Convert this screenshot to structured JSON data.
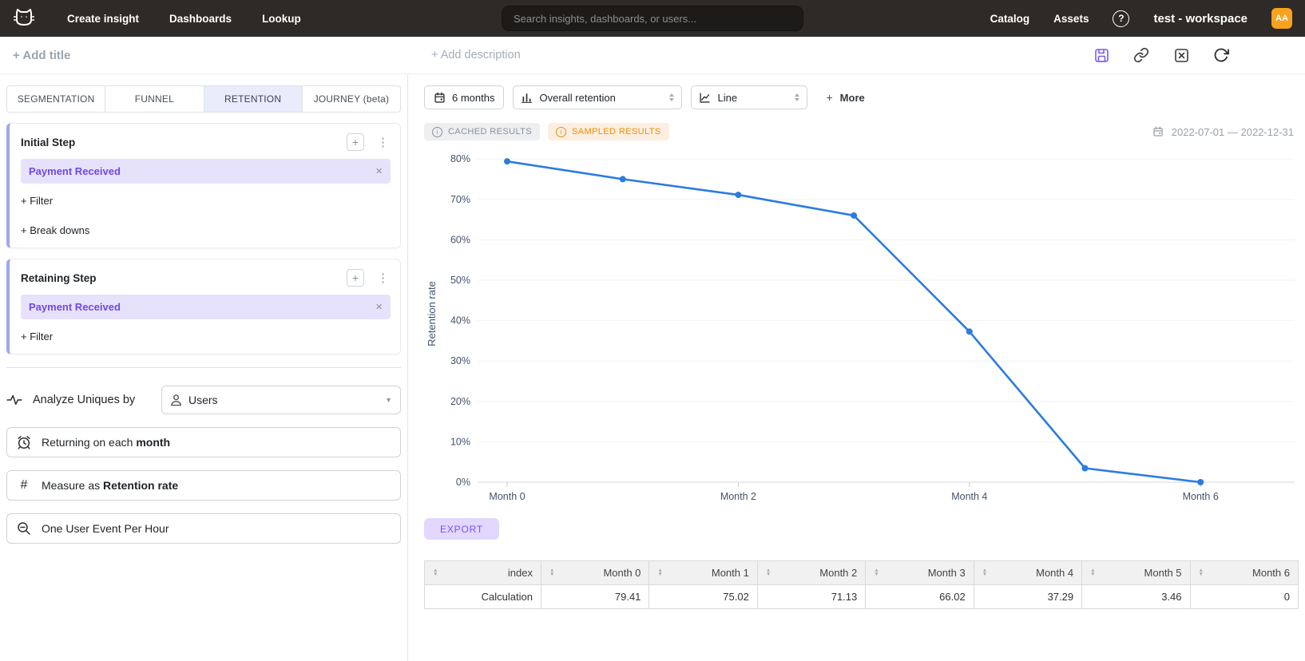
{
  "nav": {
    "items": [
      "Create insight",
      "Dashboards",
      "Lookup"
    ],
    "search_placeholder": "Search insights, dashboards, or users...",
    "catalog": "Catalog",
    "assets": "Assets",
    "workspace": "test - workspace",
    "avatar_initials": "AA"
  },
  "header": {
    "add_title": "+ Add title",
    "add_description": "+ Add description"
  },
  "sidebar": {
    "tabs": [
      {
        "label": "SEGMENTATION",
        "active": false
      },
      {
        "label": "FUNNEL",
        "active": false
      },
      {
        "label": "RETENTION",
        "active": true
      },
      {
        "label": "JOURNEY (beta)",
        "active": false
      }
    ],
    "initial_step": {
      "title": "Initial Step",
      "event": "Payment Received",
      "filter_label": "+ Filter",
      "breakdowns_label": "+ Break downs"
    },
    "retaining_step": {
      "title": "Retaining Step",
      "event": "Payment Received",
      "filter_label": "+ Filter"
    },
    "analyze": {
      "label": "Analyze Uniques by",
      "value": "Users"
    },
    "returning": {
      "prefix": "Returning on each",
      "value": "month"
    },
    "measure": {
      "prefix": "Measure as",
      "value": "Retention rate"
    },
    "dedupe_label": "One User Event Per Hour"
  },
  "toolbar": {
    "timeframe": "6 months",
    "metric": "Overall retention",
    "chart_type": "Line",
    "more_label": "More"
  },
  "status": {
    "cached_label": "CACHED RESULTS",
    "sampled_label": "SAMPLED RESULTS",
    "date_range": "2022-07-01 — 2022-12-31"
  },
  "chart_data": {
    "type": "line",
    "x": [
      "Month 0",
      "Month 1",
      "Month 2",
      "Month 3",
      "Month 4",
      "Month 5",
      "Month 6"
    ],
    "values": [
      79.41,
      75.02,
      71.13,
      66.02,
      37.29,
      3.46,
      0
    ],
    "title": "",
    "xlabel": "",
    "ylabel": "Retention rate",
    "ylim": [
      0,
      85
    ],
    "yticks": [
      0,
      10,
      20,
      30,
      40,
      50,
      60,
      70,
      80
    ],
    "ytick_suffix": "%",
    "x_labeled": [
      "Month 0",
      "Month 2",
      "Month 4",
      "Month 6"
    ],
    "grid": true,
    "legend": "none",
    "line_color": "#2b7ce0"
  },
  "export_label": "EXPORT",
  "table": {
    "columns": [
      "index",
      "Month 0",
      "Month 1",
      "Month 2",
      "Month 3",
      "Month 4",
      "Month 5",
      "Month 6"
    ],
    "rows": [
      [
        "Calculation",
        "79.41",
        "75.02",
        "71.13",
        "66.02",
        "37.29",
        "3.46",
        "0"
      ]
    ]
  },
  "icons": {
    "plus": "+",
    "kebab": "⋮",
    "close": "×",
    "chevron_down": "▼",
    "sort_asc": "▲",
    "sort_desc": "▼",
    "question": "?",
    "info": "i",
    "hash": "#"
  },
  "colors": {
    "navbar_bg": "#2d2a27",
    "accent_purple": "#7048e8",
    "chip_bg": "#e7e2fc",
    "active_tab_bg": "#e8ecfb",
    "sampled_orange": "#f08c00",
    "avatar_orange": "#f9a21d",
    "line_blue": "#2b7ce0"
  }
}
